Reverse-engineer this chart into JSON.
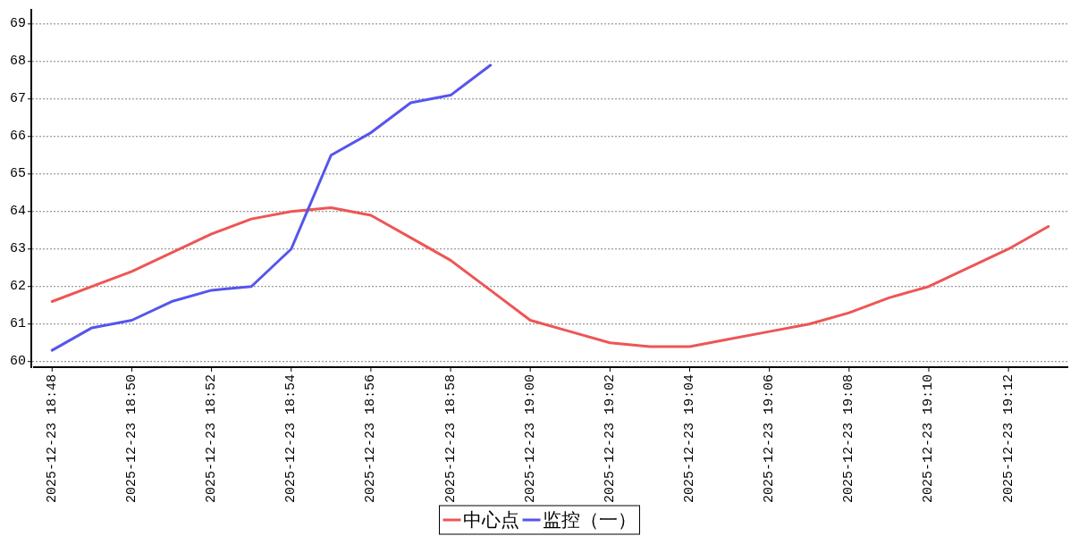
{
  "chart_data": {
    "type": "line",
    "series": [
      {
        "name": "中心点",
        "color": "#ee5555",
        "x": [
          "2025-12-23T18:48",
          "2025-12-23T18:49",
          "2025-12-23T18:50",
          "2025-12-23T18:51",
          "2025-12-23T18:52",
          "2025-12-23T18:53",
          "2025-12-23T18:54",
          "2025-12-23T18:55",
          "2025-12-23T18:56",
          "2025-12-23T18:57",
          "2025-12-23T18:58",
          "2025-12-23T18:59",
          "2025-12-23T19:00",
          "2025-12-23T19:01",
          "2025-12-23T19:02",
          "2025-12-23T19:03",
          "2025-12-23T19:04",
          "2025-12-23T19:05",
          "2025-12-23T19:06",
          "2025-12-23T19:07",
          "2025-12-23T19:08",
          "2025-12-23T19:09",
          "2025-12-23T19:10",
          "2025-12-23T19:11",
          "2025-12-23T19:12",
          "2025-12-23T19:13"
        ],
        "values": [
          61.6,
          62.0,
          62.4,
          62.9,
          63.4,
          63.8,
          64.0,
          64.1,
          63.9,
          63.3,
          62.7,
          61.9,
          61.1,
          60.8,
          60.5,
          60.4,
          60.4,
          60.6,
          60.8,
          61.0,
          61.3,
          61.7,
          62.0,
          62.5,
          63.0,
          63.6
        ]
      },
      {
        "name": "监控（一）",
        "color": "#5555ee",
        "x": [
          "2025-12-23T18:48",
          "2025-12-23T18:49",
          "2025-12-23T18:50",
          "2025-12-23T18:51",
          "2025-12-23T18:52",
          "2025-12-23T18:53",
          "2025-12-23T18:54",
          "2025-12-23T18:55",
          "2025-12-23T18:56",
          "2025-12-23T18:57",
          "2025-12-23T18:58",
          "2025-12-23T18:59"
        ],
        "values": [
          60.3,
          60.9,
          61.1,
          61.6,
          61.9,
          62.0,
          63.0,
          65.5,
          66.1,
          66.9,
          67.1,
          67.9
        ]
      }
    ],
    "xlim": [
      "2025-12-23T18:47:30",
      "2025-12-23T19:13:30"
    ],
    "xticks": [
      {
        "value": "2025-12-23T18:48",
        "label": "2025-12-23 18:48"
      },
      {
        "value": "2025-12-23T18:50",
        "label": "2025-12-23 18:50"
      },
      {
        "value": "2025-12-23T18:52",
        "label": "2025-12-23 18:52"
      },
      {
        "value": "2025-12-23T18:54",
        "label": "2025-12-23 18:54"
      },
      {
        "value": "2025-12-23T18:56",
        "label": "2025-12-23 18:56"
      },
      {
        "value": "2025-12-23T18:58",
        "label": "2025-12-23 18:58"
      },
      {
        "value": "2025-12-23T19:00",
        "label": "2025-12-23 19:00"
      },
      {
        "value": "2025-12-23T19:02",
        "label": "2025-12-23 19:02"
      },
      {
        "value": "2025-12-23T19:04",
        "label": "2025-12-23 19:04"
      },
      {
        "value": "2025-12-23T19:06",
        "label": "2025-12-23 19:06"
      },
      {
        "value": "2025-12-23T19:08",
        "label": "2025-12-23 19:08"
      },
      {
        "value": "2025-12-23T19:10",
        "label": "2025-12-23 19:10"
      },
      {
        "value": "2025-12-23T19:12",
        "label": "2025-12-23 19:12"
      }
    ],
    "ylim": [
      59.85,
      69.4
    ],
    "yticks": [
      60,
      61,
      62,
      63,
      64,
      65,
      66,
      67,
      68,
      69
    ],
    "grid": "y",
    "legend": "bottom",
    "line_style": "solid"
  }
}
